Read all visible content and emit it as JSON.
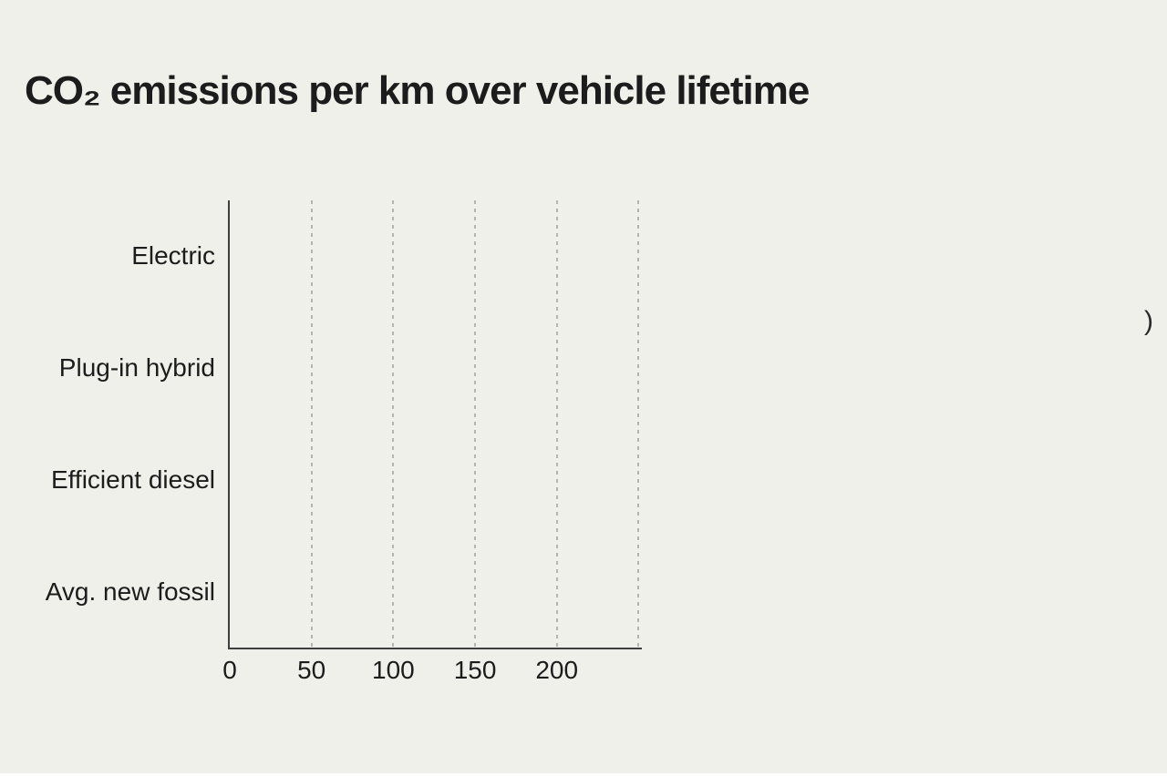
{
  "page": {
    "title": "CO₂ emissions per km over vehicle lifetime",
    "clipped_fragment": ")"
  },
  "chart_data": {
    "type": "bar",
    "orientation": "horizontal",
    "title": "CO₂ emissions per km over vehicle lifetime",
    "categories": [
      "Electric",
      "Plug-in hybrid",
      "Efficient diesel",
      "Avg. new fossil"
    ],
    "values": [
      0,
      0,
      0,
      0
    ],
    "bars_visible": false,
    "xticks": [
      0,
      50,
      100,
      150,
      200
    ],
    "gridline_values": [
      50,
      100,
      150,
      200,
      250
    ],
    "xlim": [
      0,
      252
    ],
    "xlabel": "",
    "ylabel": "",
    "grid": "vertical-dashed",
    "legend": "none",
    "colors": {
      "background": "#f0f0ea",
      "axis": "#3f3f3f",
      "gridline": "#b3b3b0",
      "text": "#1c1c1c",
      "bottom_edge_strip": "#ffffff"
    }
  }
}
